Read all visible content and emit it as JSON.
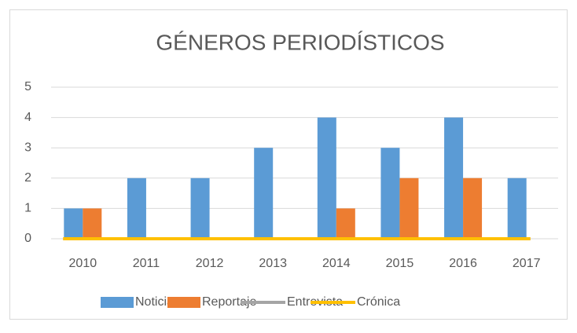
{
  "chart_data": {
    "type": "bar",
    "title": "GÉNEROS PERIODÍSTICOS",
    "categories": [
      "2010",
      "2011",
      "2012",
      "2013",
      "2014",
      "2015",
      "2016",
      "2017"
    ],
    "series": [
      {
        "name": "Noticia",
        "color": "#5b9bd5",
        "values": [
          1,
          2,
          2,
          3,
          4,
          3,
          4,
          2
        ]
      },
      {
        "name": "Reportaje",
        "color": "#ed7d31",
        "values": [
          1,
          0,
          0,
          0,
          1,
          2,
          2,
          0
        ]
      },
      {
        "name": "Entrevista",
        "type": "line",
        "color": "#a5a5a5",
        "values": [
          0,
          0,
          0,
          0,
          0,
          0,
          0,
          0
        ]
      },
      {
        "name": "Crónica",
        "type": "line",
        "color": "#ffc000",
        "values": [
          0,
          0,
          0,
          0,
          0,
          0,
          0,
          0
        ]
      }
    ],
    "ylim": [
      0,
      5
    ],
    "yticks": [
      0,
      1,
      2,
      3,
      4,
      5
    ],
    "grid": true,
    "legend": "bottom"
  }
}
